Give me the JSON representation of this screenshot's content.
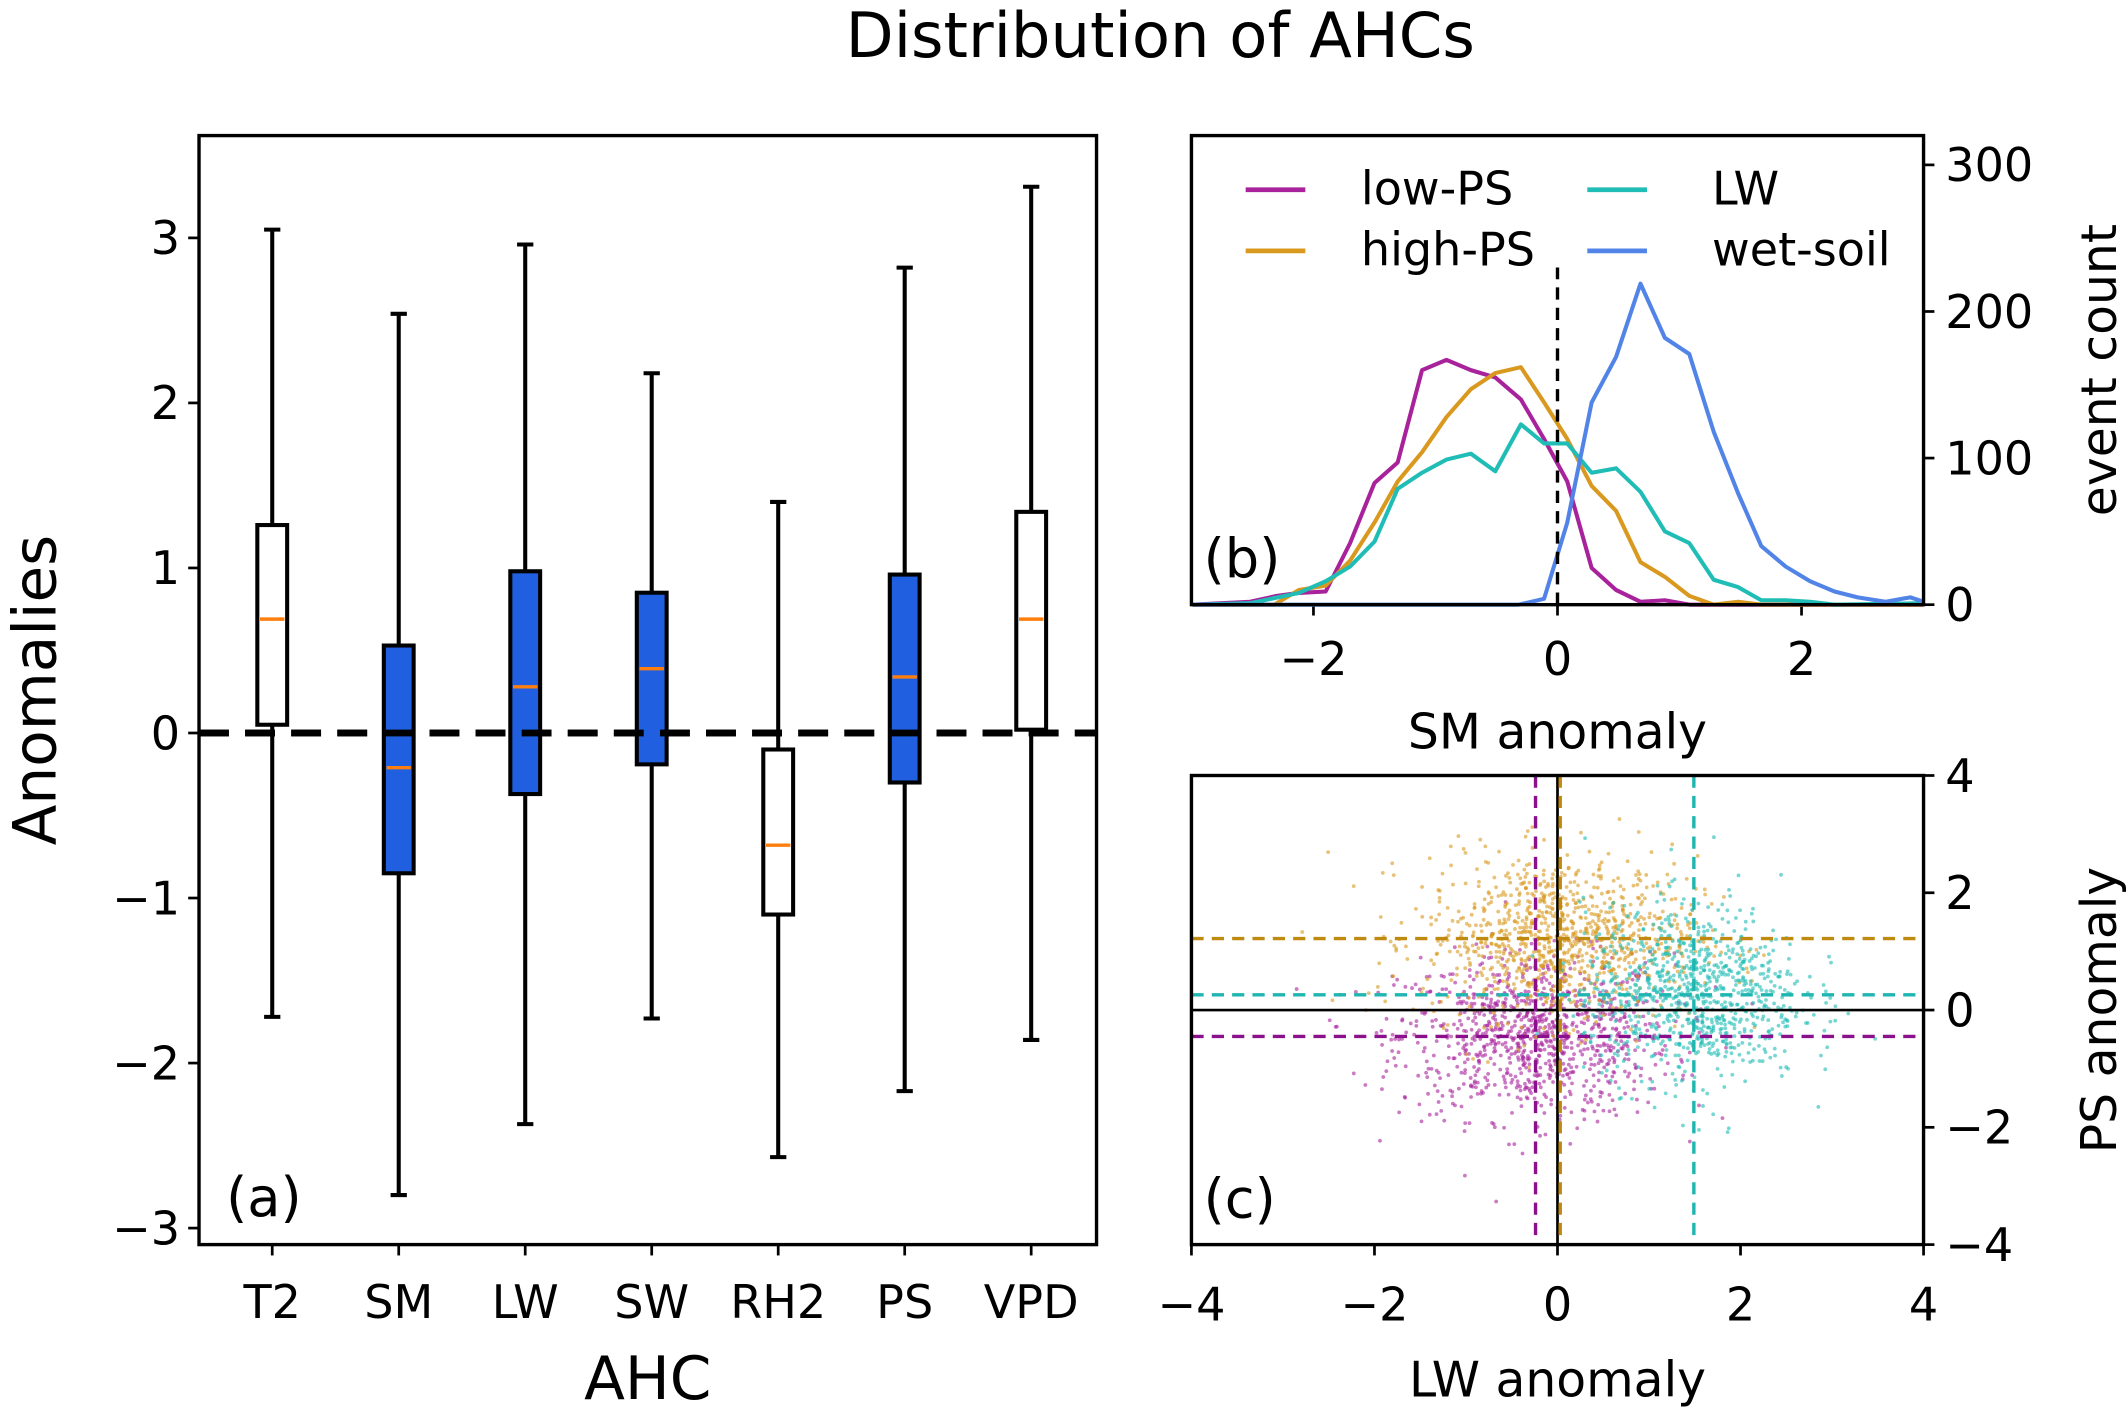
{
  "title": "Distribution of AHCs",
  "chart_data": [
    {
      "panel": "(a)",
      "type": "box",
      "xlabel": "AHC",
      "ylabel": "Anomalies",
      "ylim": [
        -3.1,
        3.62
      ],
      "yticks": [
        -3,
        -2,
        -1,
        0,
        1,
        2,
        3
      ],
      "reference_line": {
        "y": 0,
        "style": "dashed",
        "color": "#000000"
      },
      "categories": [
        "T2",
        "SM",
        "LW",
        "SW",
        "RH2",
        "PS",
        "VPD"
      ],
      "boxes": [
        {
          "label": "T2",
          "whislo": -1.72,
          "q1": 0.05,
          "med": 0.69,
          "q3": 1.26,
          "whishi": 3.05,
          "filled": false
        },
        {
          "label": "SM",
          "whislo": -2.8,
          "q1": -0.85,
          "med": -0.21,
          "q3": 0.53,
          "whishi": 2.54,
          "filled": true
        },
        {
          "label": "LW",
          "whislo": -2.37,
          "q1": -0.37,
          "med": 0.28,
          "q3": 0.98,
          "whishi": 2.96,
          "filled": true
        },
        {
          "label": "SW",
          "whislo": -1.73,
          "q1": -0.19,
          "med": 0.39,
          "q3": 0.85,
          "whishi": 2.18,
          "filled": true
        },
        {
          "label": "RH2",
          "whislo": -2.57,
          "q1": -1.1,
          "med": -0.68,
          "q3": -0.1,
          "whishi": 1.4,
          "filled": false
        },
        {
          "label": "PS",
          "whislo": -2.17,
          "q1": -0.3,
          "med": 0.34,
          "q3": 0.96,
          "whishi": 2.82,
          "filled": true
        },
        {
          "label": "VPD",
          "whislo": -1.86,
          "q1": 0.02,
          "med": 0.69,
          "q3": 1.34,
          "whishi": 3.31,
          "filled": false
        }
      ],
      "colors": {
        "box_fill": "#1f5fe0",
        "median": "#ff7f0e"
      }
    },
    {
      "panel": "(b)",
      "type": "line",
      "xlabel": "SM anomaly",
      "ylabel": "event count",
      "xlim": [
        -3,
        3
      ],
      "ylim": [
        0,
        320
      ],
      "xticks": [
        -2,
        0,
        2
      ],
      "yticks": [
        0,
        100,
        200,
        300
      ],
      "y_axis_side": "right",
      "reference_line": {
        "x": 0,
        "style": "dashed",
        "color": "#000000",
        "y_top": 230
      },
      "legend_placement": "top",
      "series": [
        {
          "name": "low-PS",
          "color": "#a8229c",
          "points": [
            [
              -2.99,
              0
            ],
            [
              -2.52,
              2
            ],
            [
              -2.3,
              6
            ],
            [
              -2.12,
              8
            ],
            [
              -1.9,
              9
            ],
            [
              -1.7,
              42
            ],
            [
              -1.5,
              83
            ],
            [
              -1.31,
              97
            ],
            [
              -1.11,
              160
            ],
            [
              -0.91,
              167
            ],
            [
              -0.71,
              160
            ],
            [
              -0.51,
              155
            ],
            [
              -0.3,
              140
            ],
            [
              -0.11,
              113
            ],
            [
              0.08,
              84
            ],
            [
              0.28,
              25
            ],
            [
              0.48,
              10
            ],
            [
              0.68,
              2
            ],
            [
              0.88,
              3
            ],
            [
              1.08,
              0
            ],
            [
              3.0,
              0
            ]
          ]
        },
        {
          "name": "high-PS",
          "color": "#d9991f",
          "points": [
            [
              -2.99,
              0
            ],
            [
              -2.32,
              0
            ],
            [
              -2.12,
              10
            ],
            [
              -1.9,
              13
            ],
            [
              -1.7,
              30
            ],
            [
              -1.5,
              56
            ],
            [
              -1.31,
              84
            ],
            [
              -1.11,
              104
            ],
            [
              -0.91,
              128
            ],
            [
              -0.71,
              147
            ],
            [
              -0.51,
              158
            ],
            [
              -0.3,
              162
            ],
            [
              -0.11,
              138
            ],
            [
              0.08,
              113
            ],
            [
              0.28,
              81
            ],
            [
              0.48,
              64
            ],
            [
              0.68,
              29
            ],
            [
              0.88,
              19
            ],
            [
              1.08,
              6
            ],
            [
              1.28,
              0
            ],
            [
              1.48,
              2
            ],
            [
              1.67,
              0
            ],
            [
              3.0,
              0
            ]
          ]
        },
        {
          "name": "LW",
          "color": "#1fbdb5",
          "points": [
            [
              -2.99,
              0
            ],
            [
              -2.52,
              1
            ],
            [
              -2.12,
              8
            ],
            [
              -1.9,
              16
            ],
            [
              -1.7,
              26
            ],
            [
              -1.5,
              43
            ],
            [
              -1.31,
              79
            ],
            [
              -1.11,
              90
            ],
            [
              -0.91,
              99
            ],
            [
              -0.71,
              103
            ],
            [
              -0.51,
              91
            ],
            [
              -0.3,
              123
            ],
            [
              -0.11,
              110
            ],
            [
              0.08,
              110
            ],
            [
              0.28,
              90
            ],
            [
              0.48,
              93
            ],
            [
              0.68,
              77
            ],
            [
              0.88,
              50
            ],
            [
              1.08,
              42
            ],
            [
              1.28,
              17
            ],
            [
              1.48,
              12
            ],
            [
              1.67,
              3
            ],
            [
              1.87,
              3
            ],
            [
              2.07,
              2
            ],
            [
              2.27,
              0
            ],
            [
              3.0,
              1
            ]
          ]
        },
        {
          "name": "wet-soil",
          "color": "#5284e8",
          "points": [
            [
              -2.99,
              0
            ],
            [
              -0.32,
              0
            ],
            [
              -0.11,
              4
            ],
            [
              0.08,
              56
            ],
            [
              0.28,
              138
            ],
            [
              0.48,
              169
            ],
            [
              0.68,
              219
            ],
            [
              0.88,
              182
            ],
            [
              1.08,
              171
            ],
            [
              1.28,
              118
            ],
            [
              1.48,
              76
            ],
            [
              1.67,
              40
            ],
            [
              1.87,
              26
            ],
            [
              2.07,
              16
            ],
            [
              2.27,
              9
            ],
            [
              2.46,
              5
            ],
            [
              2.69,
              2
            ],
            [
              2.89,
              5
            ],
            [
              3.0,
              2
            ]
          ]
        }
      ]
    },
    {
      "panel": "(c)",
      "type": "scatter",
      "xlabel": "LW anomaly",
      "ylabel": "PS anomaly",
      "xlim": [
        -4,
        4
      ],
      "ylim": [
        -4,
        4
      ],
      "xticks": [
        -4,
        -2,
        0,
        2,
        4
      ],
      "yticks": [
        -4,
        -2,
        0,
        2,
        4
      ],
      "y_axis_side": "right",
      "zero_lines": true,
      "series": [
        {
          "group": "low-PS",
          "color": "#a8229c",
          "line_color": "#8b108b",
          "mean_x": -0.24,
          "mean_y": -0.45
        },
        {
          "group": "high-PS",
          "color": "#d9991f",
          "line_color": "#c08a10",
          "mean_x": 0.03,
          "mean_y": 1.22
        },
        {
          "group": "LW",
          "color": "#1fbdb5",
          "line_color": "#1fb5b0",
          "mean_x": 1.49,
          "mean_y": 0.26
        }
      ]
    }
  ]
}
